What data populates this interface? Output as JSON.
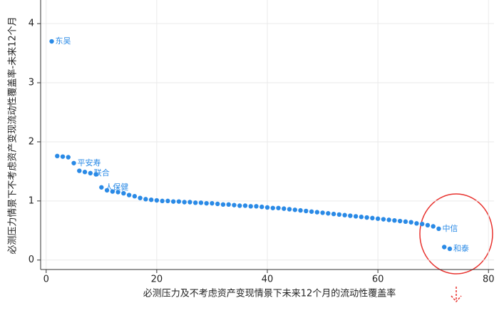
{
  "chart_data": {
    "type": "scatter",
    "xlabel": "必测压力及不考虑资产变现情景下未来12个月的流动性覆盖率",
    "ylabel": "必测压力情景下不考虑资产变现流动性覆盖率-未来12个月",
    "color": "#2a8ae6",
    "xlim": [
      -1,
      81
    ],
    "ylim": [
      -0.16,
      4.4
    ],
    "xticks": [
      0,
      20,
      40,
      60,
      80
    ],
    "yticks": [
      0,
      1,
      2,
      3,
      4
    ],
    "grid": true,
    "x": [
      1,
      2,
      3,
      4,
      5,
      6,
      7,
      8,
      9,
      10,
      11,
      12,
      13,
      14,
      15,
      16,
      17,
      18,
      19,
      20,
      21,
      22,
      23,
      24,
      25,
      26,
      27,
      28,
      29,
      30,
      31,
      32,
      33,
      34,
      35,
      36,
      37,
      38,
      39,
      40,
      41,
      42,
      43,
      44,
      45,
      46,
      47,
      48,
      49,
      50,
      51,
      52,
      53,
      54,
      55,
      56,
      57,
      58,
      59,
      60,
      61,
      62,
      63,
      64,
      65,
      66,
      67,
      68,
      69,
      70,
      71,
      72,
      73
    ],
    "y": [
      3.7,
      1.76,
      1.75,
      1.74,
      1.64,
      1.51,
      1.49,
      1.47,
      1.45,
      1.23,
      1.18,
      1.16,
      1.15,
      1.13,
      1.1,
      1.08,
      1.05,
      1.03,
      1.02,
      1.01,
      1.0,
      1.0,
      0.99,
      0.99,
      0.98,
      0.98,
      0.97,
      0.97,
      0.96,
      0.96,
      0.95,
      0.94,
      0.94,
      0.93,
      0.92,
      0.92,
      0.91,
      0.91,
      0.9,
      0.89,
      0.88,
      0.88,
      0.87,
      0.86,
      0.85,
      0.84,
      0.83,
      0.82,
      0.81,
      0.8,
      0.79,
      0.78,
      0.77,
      0.76,
      0.75,
      0.74,
      0.73,
      0.72,
      0.71,
      0.7,
      0.69,
      0.68,
      0.67,
      0.66,
      0.65,
      0.64,
      0.62,
      0.61,
      0.59,
      0.57,
      0.53,
      0.22,
      0.19
    ],
    "point_labels": [
      "东吴",
      null,
      null,
      null,
      "平安寿",
      null,
      null,
      "联合",
      null,
      "人保健",
      null,
      null,
      null,
      null,
      null,
      null,
      null,
      null,
      null,
      null,
      null,
      null,
      null,
      null,
      null,
      null,
      null,
      null,
      null,
      null,
      null,
      null,
      null,
      null,
      null,
      null,
      null,
      null,
      null,
      null,
      null,
      null,
      null,
      null,
      null,
      null,
      null,
      null,
      null,
      null,
      null,
      null,
      null,
      null,
      null,
      null,
      null,
      null,
      null,
      null,
      null,
      null,
      null,
      null,
      null,
      null,
      null,
      null,
      null,
      null,
      "中信",
      null,
      "和泰"
    ]
  }
}
